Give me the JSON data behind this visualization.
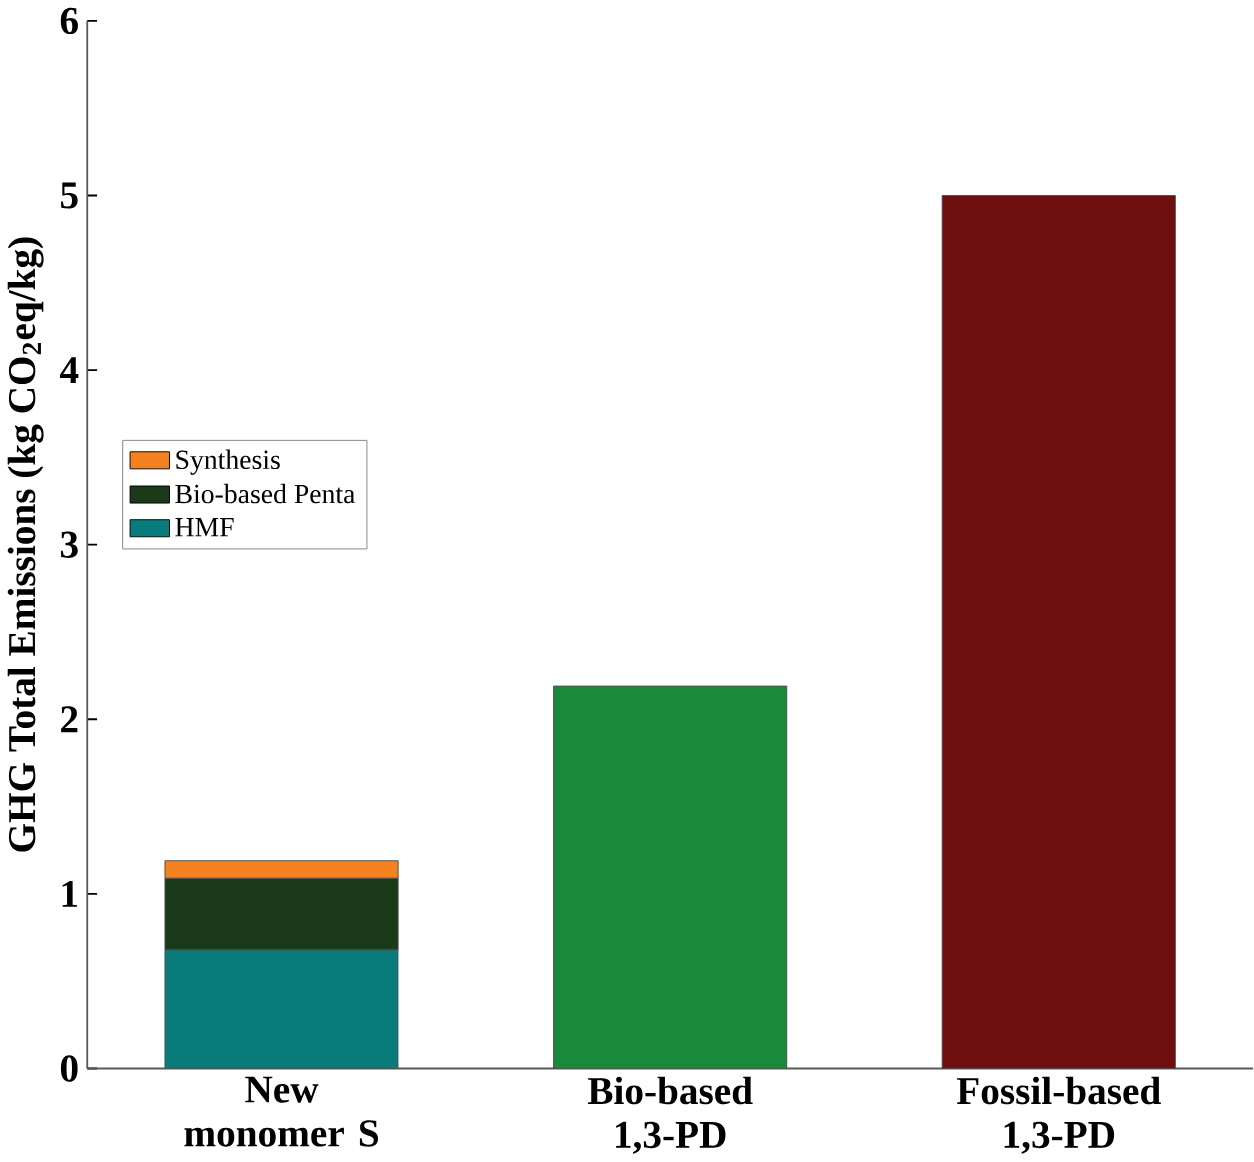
{
  "chart_data": {
    "type": "bar",
    "ylabel": "GHG Total Emissions (kg CO$_{2}$eq/kg)",
    "categories": [
      "New monomer S",
      "Bio-based 1,3-PD",
      "Fossil-based 1,3-PD"
    ],
    "stacked": true,
    "series": [
      {
        "name": "HMF",
        "color": "#0a7b7b",
        "values": [
          0.68,
          null,
          null
        ]
      },
      {
        "name": "Bio-based Penta",
        "color": "#1a3a1a",
        "values": [
          0.41,
          null,
          null
        ]
      },
      {
        "name": "Synthesis",
        "color": "#f58220",
        "values": [
          0.1,
          null,
          null
        ]
      },
      {
        "color": "#1a8a3a",
        "values": [
          null,
          2.19,
          null
        ]
      },
      {
        "color": "#6e0e0e",
        "values": [
          null,
          null,
          5.0
        ]
      }
    ],
    "ylim": [
      0,
      6
    ],
    "yticks": [
      0,
      1,
      2,
      3,
      4,
      5,
      6
    ],
    "grid": false,
    "legend": "top left"
  }
}
